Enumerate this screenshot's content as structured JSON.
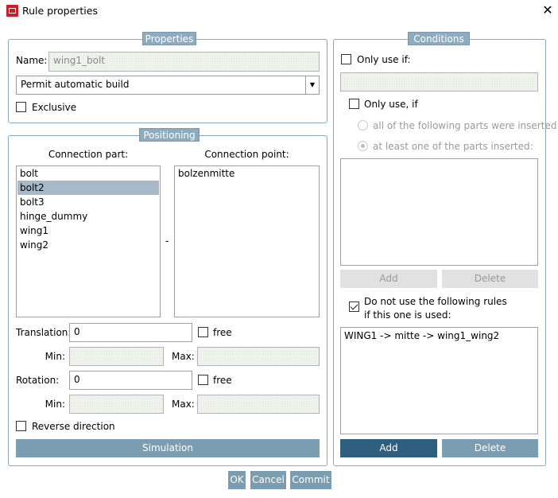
{
  "window": {
    "title": "Rule properties",
    "close_icon": "close-icon",
    "app_icon": "app-icon"
  },
  "properties": {
    "legend": "Properties",
    "name_label": "Name:",
    "name_value": "wing1_bolt",
    "build_select": "Permit automatic build",
    "exclusive_label": "Exclusive",
    "exclusive_checked": false
  },
  "positioning": {
    "legend": "Positioning",
    "connection_part_header": "Connection part:",
    "connection_point_header": "Connection point:",
    "parts": [
      {
        "label": "bolt",
        "selected": false
      },
      {
        "label": "bolt2",
        "selected": true
      },
      {
        "label": "bolt3",
        "selected": false
      },
      {
        "label": "hinge_dummy",
        "selected": false
      },
      {
        "label": "wing1",
        "selected": false
      },
      {
        "label": "wing2",
        "selected": false
      }
    ],
    "separator": "-",
    "points": [
      "bolzenmitte"
    ],
    "translation_label": "Translation:",
    "translation_value": "0",
    "free_label": "free",
    "min_label": "Min:",
    "max_label": "Max:",
    "rotation_label": "Rotation:",
    "rotation_value": "0",
    "reverse_label": "Reverse direction",
    "simulation_button": "Simulation"
  },
  "conditions": {
    "legend": "Conditions",
    "only_use_if_label": "Only use if:",
    "only_use_if2_label": "Only use, if",
    "radio_all": "all of the following parts were inserted:",
    "radio_one": "at least one of the parts inserted:",
    "radio_selected": "at least one of the parts inserted:",
    "add_label": "Add",
    "delete_label": "Delete",
    "do_not_use_line1": "Do not use the following rules",
    "do_not_use_line2": "if this one is used:",
    "do_not_use_checked": true,
    "rules": [
      "WING1 -> mitte -> wing1_wing2"
    ]
  },
  "footer": {
    "ok": "OK",
    "cancel": "Cancel",
    "commit": "Commit"
  },
  "colors": {
    "accent": "#7b9db2",
    "primary": "#2f5f7f",
    "selection": "#a7b8c8"
  }
}
